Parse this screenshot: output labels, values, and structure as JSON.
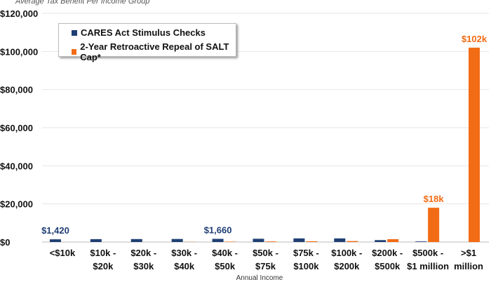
{
  "chart_data": {
    "type": "bar",
    "subtitle": "Average Tax Benefit Per Income Group",
    "xlabel": "Annual Income",
    "ylabel": "",
    "ylim": [
      0,
      120000
    ],
    "yticks": [
      "$0",
      "$20,000",
      "$40,000",
      "$60,000",
      "$80,000",
      "$100,000",
      "$120,000"
    ],
    "ytick_values": [
      0,
      20000,
      40000,
      60000,
      80000,
      100000,
      120000
    ],
    "grid": true,
    "legend_position": "top-left",
    "categories": [
      [
        "<$10k"
      ],
      [
        "$10k -",
        "$20k"
      ],
      [
        "$20k -",
        "$30k"
      ],
      [
        "$30k -",
        "$40k"
      ],
      [
        "$40k -",
        "$50k"
      ],
      [
        "$50k -",
        "$75k"
      ],
      [
        "$75k -",
        "$100k"
      ],
      [
        "$100k -",
        "$200k"
      ],
      [
        "$200k -",
        "$500k"
      ],
      [
        "$500k -",
        "$1 million"
      ],
      [
        ">$1",
        "million"
      ]
    ],
    "series": [
      {
        "name": "CARES Act Stimulus Checks",
        "color": "#1f3f73",
        "values": [
          1420,
          1500,
          1550,
          1600,
          1660,
          1700,
          1900,
          1900,
          1000,
          300,
          0
        ],
        "labels": {
          "0": "$1,420",
          "4": "$1,660"
        }
      },
      {
        "name": "2-Year Retroactive Repeal of SALT Cap*",
        "color": "#f26b15",
        "values": [
          0,
          0,
          0,
          100,
          200,
          300,
          400,
          500,
          1500,
          18000,
          102000
        ],
        "labels": {
          "9": "$18k",
          "10": "$102k"
        }
      }
    ]
  }
}
